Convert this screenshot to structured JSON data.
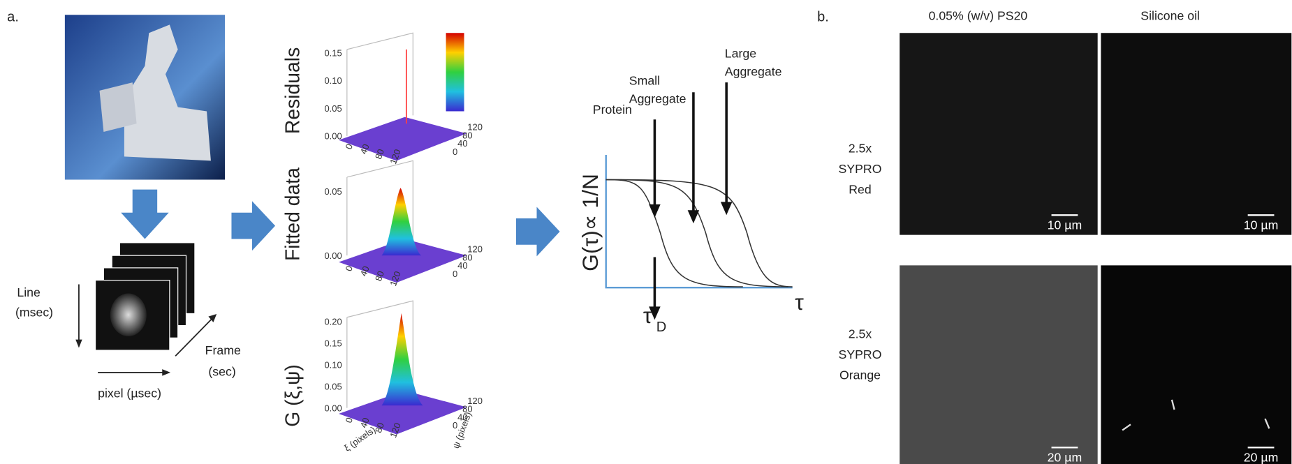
{
  "panel_a": {
    "label": "a.",
    "scan": {
      "line": "Line",
      "line_unit": "(msec)",
      "pixel": "pixel (µsec)",
      "frame": "Frame",
      "frame_unit": "(sec)"
    },
    "surface_plots": {
      "residuals_label": "Residuals",
      "fitted_label": "Fitted data",
      "correlation_label": "G (ξ,ψ)",
      "residual_ticks": [
        "0.15",
        "0.10",
        "0.05",
        "0.00"
      ],
      "fitted_ticks": [
        "0.05",
        "0.00"
      ],
      "correlation_ticks": [
        "0.20",
        "0.15",
        "0.10",
        "0.05",
        "0.00"
      ],
      "plane_ticks": [
        "0",
        "40",
        "80",
        "120"
      ],
      "xi_label": "ξ (pixels)",
      "psi_label": "ψ (pixels)"
    },
    "fcs": {
      "y_label": "G(τ)∝ 1/N",
      "tau_d": "τ",
      "tau_d_sub": "D",
      "x_label": "τ",
      "arrows": [
        {
          "lines": [
            "Protein"
          ]
        },
        {
          "lines": [
            "Small",
            "Aggregate"
          ]
        },
        {
          "lines": [
            "Large",
            "Aggregate"
          ]
        }
      ]
    }
  },
  "panel_b": {
    "label": "b.",
    "columns": [
      "0.05% (w/v) PS20",
      "Silicone oil"
    ],
    "rows": [
      {
        "lines": [
          "2.5x",
          "SYPRO",
          "Red"
        ],
        "scale_bar": "10 µm"
      },
      {
        "lines": [
          "2.5x",
          "SYPRO",
          "Orange"
        ],
        "scale_bar": "20 µm"
      }
    ]
  }
}
